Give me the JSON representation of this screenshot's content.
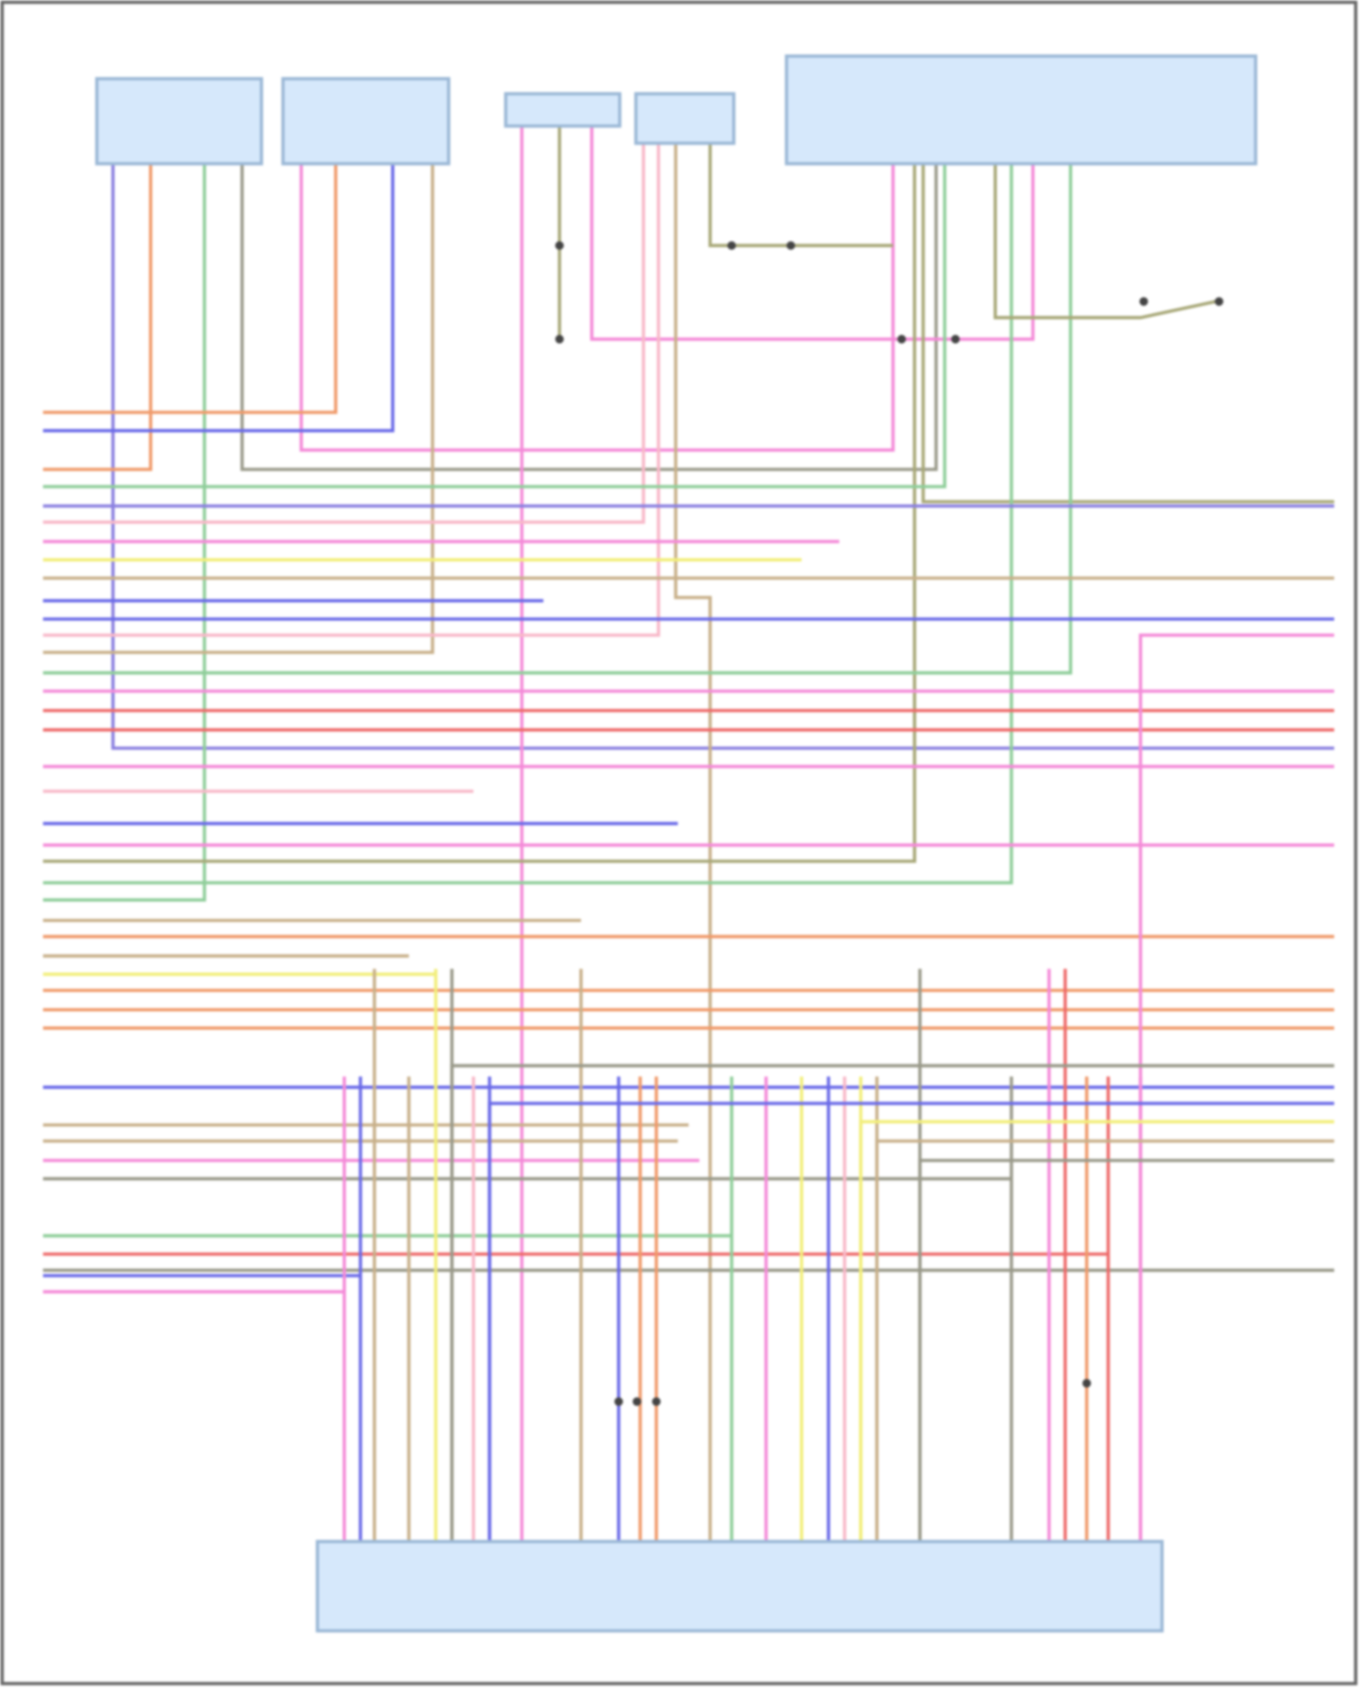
{
  "colors": {
    "frame": "#555555",
    "component_fill": "#d6e8fb",
    "component_stroke": "#9bb8d6",
    "violet": "#8a7fe0",
    "orange": "#f09a6a",
    "pink": "#f48ad8",
    "tan": "#c8b08a",
    "gray": "#9a9a8a",
    "green": "#8fce9a",
    "yellow": "#f2ee7a",
    "red": "#ee6a6a",
    "blue": "#6a6ae8",
    "light_pink": "#f8b8c8",
    "olive": "#a8a878",
    "dark": "#444444"
  }
}
